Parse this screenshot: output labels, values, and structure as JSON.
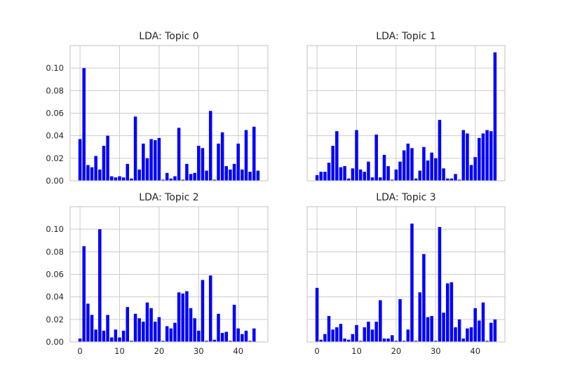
{
  "chart_data": [
    {
      "type": "bar",
      "title": "LDA: Topic 0",
      "xlabel": "",
      "ylabel": "",
      "xlim": [
        -2.5,
        47.5
      ],
      "ylim": [
        0,
        0.12
      ],
      "xticks": [
        0,
        10,
        20,
        30,
        40
      ],
      "yticks": [
        0.0,
        0.02,
        0.04,
        0.06,
        0.08,
        0.1
      ],
      "ytick_labels": [
        "0.00",
        "0.02",
        "0.04",
        "0.06",
        "0.08",
        "0.10"
      ],
      "grid": true,
      "show_xtick_labels": false,
      "show_ytick_labels": true,
      "x": [
        0,
        1,
        2,
        3,
        4,
        5,
        6,
        7,
        8,
        9,
        10,
        11,
        12,
        13,
        14,
        15,
        16,
        17,
        18,
        19,
        20,
        21,
        22,
        23,
        24,
        25,
        26,
        27,
        28,
        29,
        30,
        31,
        32,
        33,
        34,
        35,
        36,
        37,
        38,
        39,
        40,
        41,
        42,
        43,
        44,
        45
      ],
      "values": [
        0.037,
        0.1,
        0.014,
        0.012,
        0.022,
        0.01,
        0.031,
        0.04,
        0.004,
        0.003,
        0.004,
        0.003,
        0.015,
        0.002,
        0.057,
        0.01,
        0.033,
        0.02,
        0.037,
        0.036,
        0.038,
        0.001,
        0.007,
        0.002,
        0.004,
        0.047,
        0.001,
        0.015,
        0.006,
        0.007,
        0.031,
        0.029,
        0.009,
        0.062,
        0.001,
        0.033,
        0.043,
        0.013,
        0.01,
        0.015,
        0.033,
        0.01,
        0.045,
        0.008,
        0.048,
        0.009
      ]
    },
    {
      "type": "bar",
      "title": "LDA: Topic 1",
      "xlabel": "",
      "ylabel": "",
      "xlim": [
        -2.5,
        47.5
      ],
      "ylim": [
        0,
        0.12
      ],
      "xticks": [
        0,
        10,
        20,
        30,
        40
      ],
      "yticks": [
        0.0,
        0.02,
        0.04,
        0.06,
        0.08,
        0.1
      ],
      "grid": true,
      "show_xtick_labels": false,
      "show_ytick_labels": false,
      "x": [
        0,
        1,
        2,
        3,
        4,
        5,
        6,
        7,
        8,
        9,
        10,
        11,
        12,
        13,
        14,
        15,
        16,
        17,
        18,
        19,
        20,
        21,
        22,
        23,
        24,
        25,
        26,
        27,
        28,
        29,
        30,
        31,
        32,
        33,
        34,
        35,
        36,
        37,
        38,
        39,
        40,
        41,
        42,
        43,
        44,
        45
      ],
      "values": [
        0.005,
        0.008,
        0.008,
        0.016,
        0.031,
        0.044,
        0.012,
        0.013,
        0.002,
        0.011,
        0.045,
        0.01,
        0.008,
        0.017,
        0.003,
        0.041,
        0.003,
        0.023,
        0.013,
        0.001,
        0.01,
        0.017,
        0.027,
        0.033,
        0.029,
        0.002,
        0.009,
        0.03,
        0.018,
        0.025,
        0.02,
        0.054,
        0.011,
        0.002,
        0.002,
        0.006,
        0.001,
        0.045,
        0.042,
        0.014,
        0.021,
        0.038,
        0.042,
        0.045,
        0.044,
        0.114
      ]
    },
    {
      "type": "bar",
      "title": "LDA: Topic 2",
      "xlabel": "",
      "ylabel": "",
      "xlim": [
        -2.5,
        47.5
      ],
      "ylim": [
        0,
        0.12
      ],
      "xticks": [
        0,
        10,
        20,
        30,
        40
      ],
      "xtick_labels": [
        "0",
        "10",
        "20",
        "30",
        "40"
      ],
      "yticks": [
        0.0,
        0.02,
        0.04,
        0.06,
        0.08,
        0.1
      ],
      "ytick_labels": [
        "0.00",
        "0.02",
        "0.04",
        "0.06",
        "0.08",
        "0.10"
      ],
      "grid": true,
      "show_xtick_labels": true,
      "show_ytick_labels": true,
      "x": [
        0,
        1,
        2,
        3,
        4,
        5,
        6,
        7,
        8,
        9,
        10,
        11,
        12,
        13,
        14,
        15,
        16,
        17,
        18,
        19,
        20,
        21,
        22,
        23,
        24,
        25,
        26,
        27,
        28,
        29,
        30,
        31,
        32,
        33,
        34,
        35,
        36,
        37,
        38,
        39,
        40,
        41,
        42,
        43,
        44,
        45
      ],
      "values": [
        0.003,
        0.085,
        0.034,
        0.024,
        0.011,
        0.1,
        0.01,
        0.024,
        0.004,
        0.011,
        0.004,
        0.01,
        0.031,
        0.001,
        0.025,
        0.021,
        0.018,
        0.035,
        0.03,
        0.018,
        0.022,
        0.001,
        0.014,
        0.012,
        0.017,
        0.044,
        0.043,
        0.045,
        0.03,
        0.021,
        0.01,
        0.055,
        0.001,
        0.059,
        0.002,
        0.025,
        0.008,
        0.009,
        0.001,
        0.033,
        0.012,
        0.007,
        0.01,
        0.001,
        0.012,
        0.0
      ]
    },
    {
      "type": "bar",
      "title": "LDA: Topic 3",
      "xlabel": "",
      "ylabel": "",
      "xlim": [
        -2.5,
        47.5
      ],
      "ylim": [
        0,
        0.12
      ],
      "xticks": [
        0,
        10,
        20,
        30,
        40
      ],
      "xtick_labels": [
        "0",
        "10",
        "20",
        "30",
        "40"
      ],
      "yticks": [
        0.0,
        0.02,
        0.04,
        0.06,
        0.08,
        0.1
      ],
      "grid": true,
      "show_xtick_labels": true,
      "show_ytick_labels": false,
      "x": [
        0,
        1,
        2,
        3,
        4,
        5,
        6,
        7,
        8,
        9,
        10,
        11,
        12,
        13,
        14,
        15,
        16,
        17,
        18,
        19,
        20,
        21,
        22,
        23,
        24,
        25,
        26,
        27,
        28,
        29,
        30,
        31,
        32,
        33,
        34,
        35,
        36,
        37,
        38,
        39,
        40,
        41,
        42,
        43,
        44,
        45
      ],
      "values": [
        0.048,
        0.002,
        0.007,
        0.023,
        0.011,
        0.013,
        0.016,
        0.003,
        0.002,
        0.007,
        0.015,
        0.001,
        0.013,
        0.018,
        0.011,
        0.018,
        0.037,
        0.003,
        0.003,
        0.006,
        0.001,
        0.038,
        0.001,
        0.011,
        0.105,
        0.001,
        0.044,
        0.078,
        0.022,
        0.023,
        0.001,
        0.102,
        0.026,
        0.052,
        0.053,
        0.013,
        0.02,
        0.003,
        0.012,
        0.013,
        0.03,
        0.019,
        0.035,
        0.001,
        0.017,
        0.02
      ]
    }
  ],
  "colors": {
    "bar": "#0000ff",
    "grid": "#cccccc",
    "text": "#262626",
    "background": "#ffffff"
  }
}
